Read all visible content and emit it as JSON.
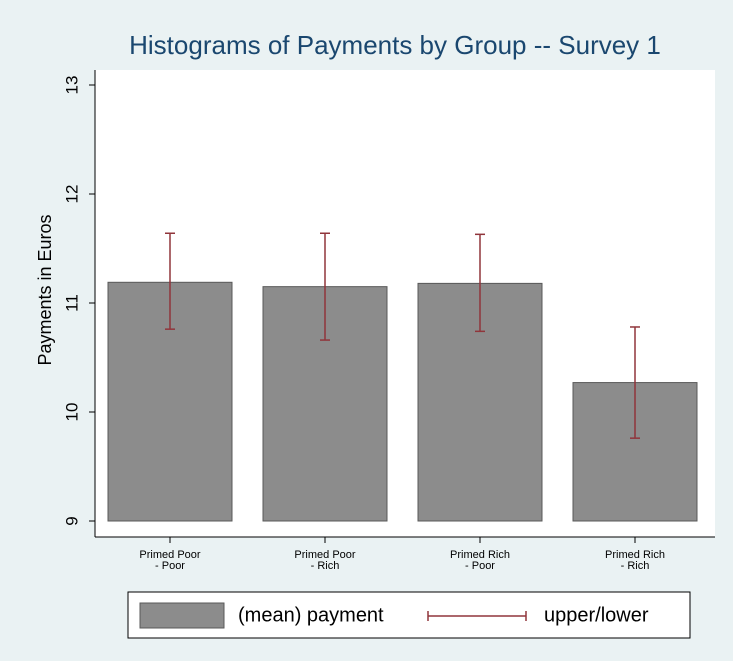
{
  "chart_data": {
    "type": "bar",
    "title": "Histograms of Payments by Group -- Survey 1",
    "ylabel": "Payments in Euros",
    "categories": [
      [
        "Primed Poor",
        "- Poor"
      ],
      [
        "Primed Poor",
        "- Rich"
      ],
      [
        "Primed Rich",
        "- Poor"
      ],
      [
        "Primed Rich",
        "- Rich"
      ]
    ],
    "series": [
      {
        "name": "(mean) payment",
        "color": "#8c8c8c",
        "values": [
          11.19,
          11.15,
          11.18,
          10.27
        ]
      }
    ],
    "error_bars": {
      "name": "upper/lower",
      "color": "#90353b",
      "upper": [
        11.64,
        11.64,
        11.63,
        10.78
      ],
      "lower": [
        10.76,
        10.66,
        10.74,
        9.76
      ]
    },
    "ylim": [
      9,
      13
    ],
    "yticks": [
      9,
      10,
      11,
      12,
      13
    ]
  }
}
